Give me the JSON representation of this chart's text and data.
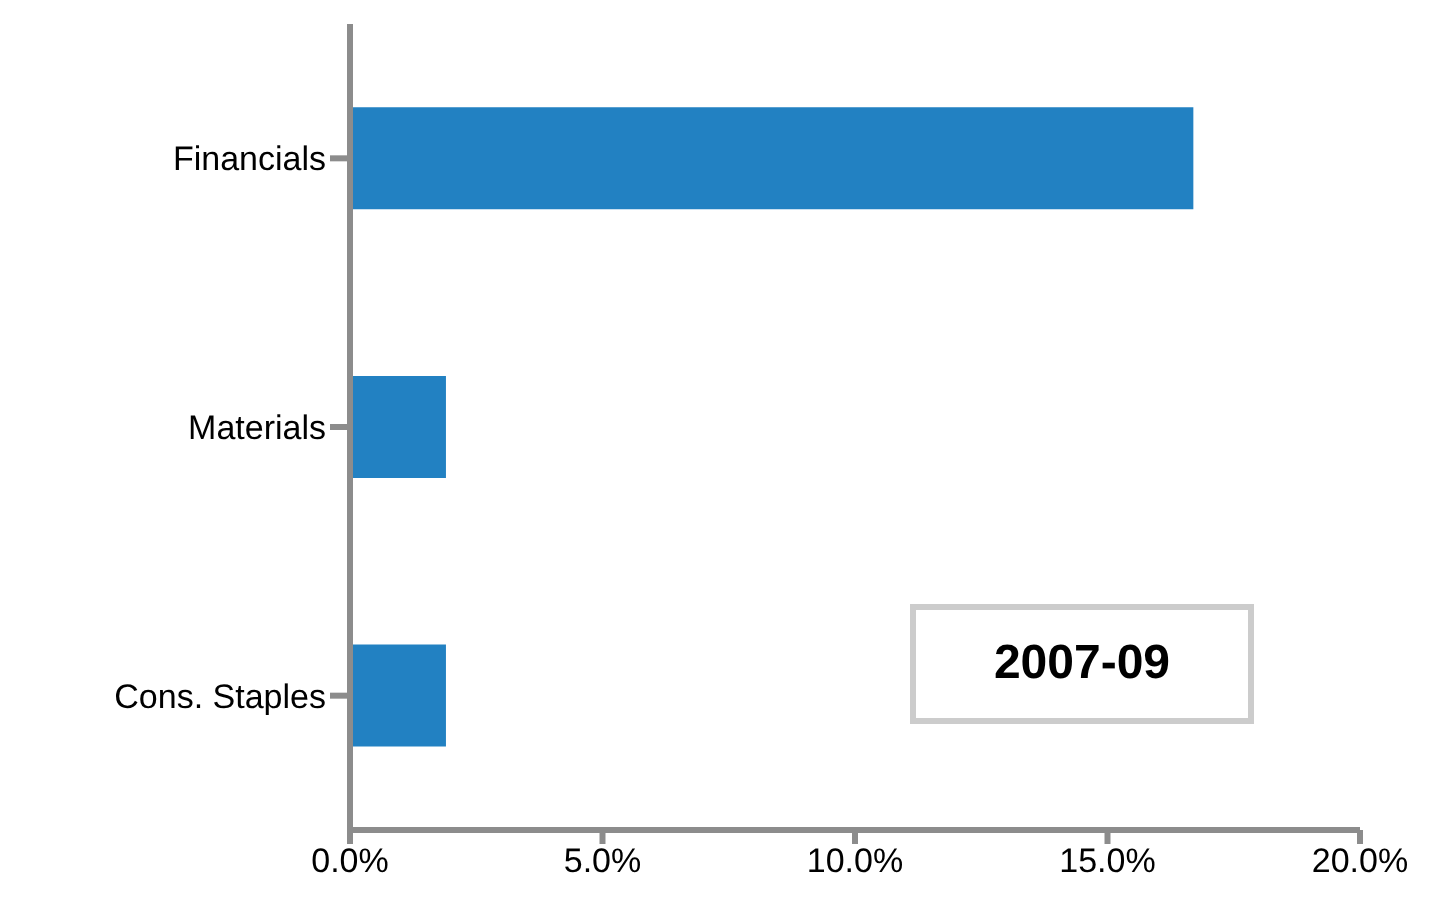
{
  "chart_data": {
    "type": "bar",
    "orientation": "horizontal",
    "categories": [
      "Financials",
      "Materials",
      "Cons. Staples"
    ],
    "values": [
      16.7,
      1.9,
      1.9
    ],
    "color": "#2281c2",
    "xlim": [
      0,
      20
    ],
    "xticks": [
      {
        "value": 0,
        "label": "0.0%"
      },
      {
        "value": 5,
        "label": "5.0%"
      },
      {
        "value": 10,
        "label": "10.0%"
      },
      {
        "value": 15,
        "label": "15.0%"
      },
      {
        "value": 20,
        "label": "20.0%"
      }
    ],
    "grid": false,
    "legend": false,
    "annotations": [
      "2007-09"
    ]
  }
}
